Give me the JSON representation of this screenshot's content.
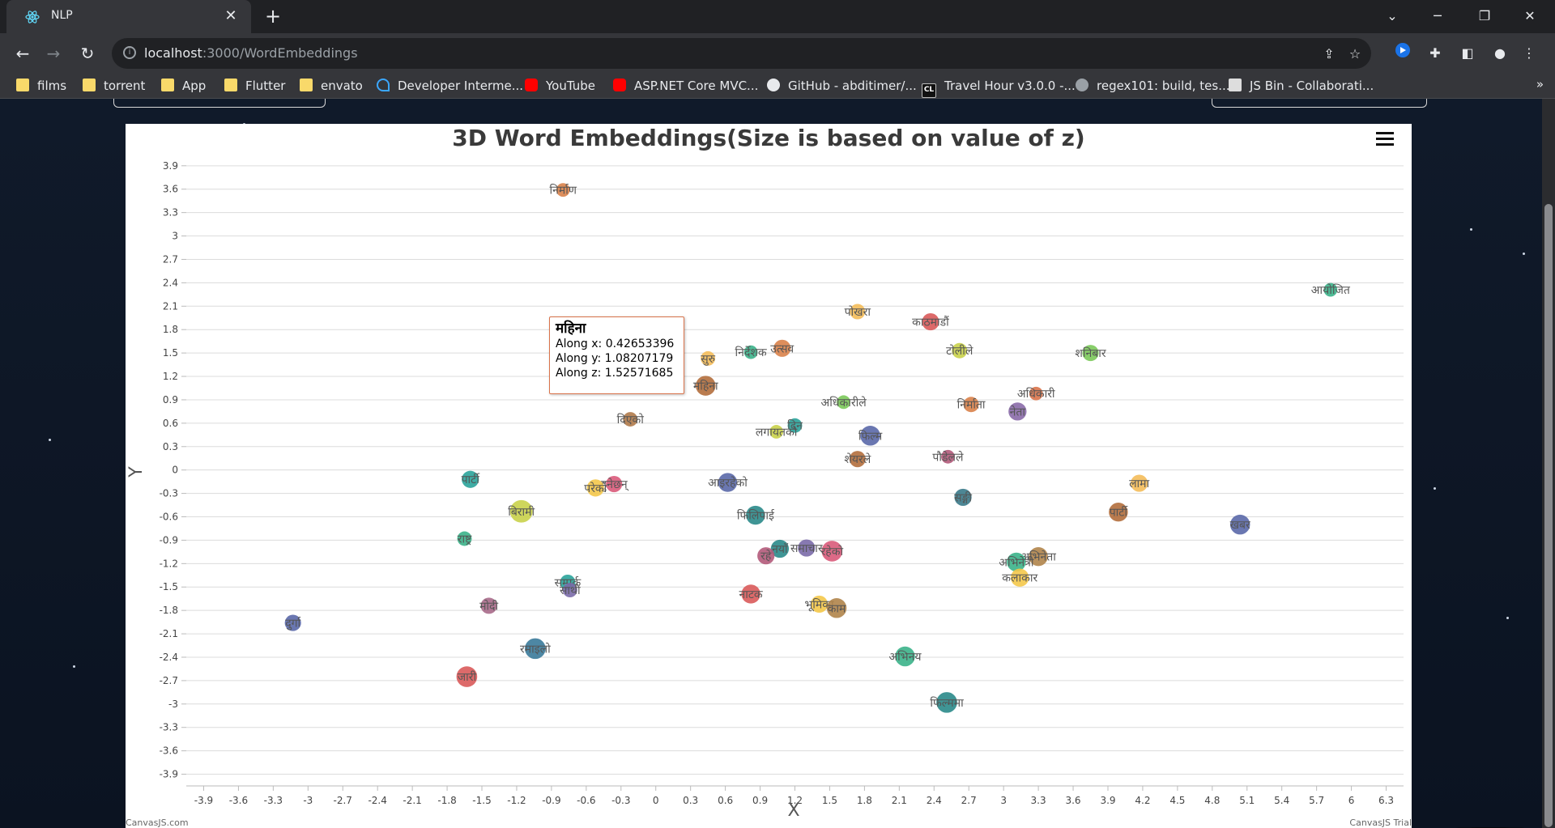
{
  "browser": {
    "tab_title": "NLP",
    "url_host": "localhost",
    "url_path": ":3000/WordEmbeddings",
    "bookmarks": [
      "films",
      "torrent",
      "App",
      "Flutter",
      "envato",
      "Developer Interme...",
      "YouTube",
      "ASP.NET Core MVC...",
      "GitHub - abditimer/...",
      "Travel Hour v3.0.0 -...",
      "regex101: build, tes...",
      "JS Bin - Collaborati..."
    ],
    "bookmark_icons": [
      "folder",
      "folder",
      "folder",
      "folder",
      "folder",
      "dev",
      "yt",
      "yt",
      "gh",
      "cl",
      "re",
      "jsbin"
    ]
  },
  "chart_data": {
    "type": "scatter",
    "title": "3D Word Embeddings(Size is based on value of z)",
    "xlabel": "X",
    "ylabel": "Y",
    "xlim": [
      -4.05,
      6.45
    ],
    "ylim": [
      -4.05,
      3.95
    ],
    "x_ticks": [
      "-3.9",
      "-3.6",
      "-3.3",
      "-3",
      "-2.7",
      "-2.4",
      "-2.1",
      "-1.8",
      "-1.5",
      "-1.2",
      "-0.9",
      "-0.6",
      "-0.3",
      "0",
      "0.3",
      "0.6",
      "0.9",
      "1.2",
      "1.5",
      "1.8",
      "2.1",
      "2.4",
      "2.7",
      "3",
      "3.3",
      "3.6",
      "3.9",
      "4.2",
      "4.5",
      "4.8",
      "5.1",
      "5.4",
      "5.7",
      "6",
      "6.3"
    ],
    "y_ticks": [
      "3.9",
      "3.6",
      "3.3",
      "3",
      "2.7",
      "2.4",
      "2.1",
      "1.8",
      "1.5",
      "1.2",
      "0.9",
      "0.6",
      "0.3",
      "0",
      "-0.3",
      "-0.6",
      "-0.9",
      "-1.2",
      "-1.5",
      "-1.8",
      "-2.1",
      "-2.4",
      "-2.7",
      "-3",
      "-3.3",
      "-3.6",
      "-3.9"
    ],
    "points": [
      {
        "label": "निर्माण",
        "x": -0.8,
        "y": 3.59,
        "z": 0.8,
        "color": "#d9824a"
      },
      {
        "label": "आयोजित",
        "x": 5.82,
        "y": 2.31,
        "z": 0.8,
        "color": "#3bb38a"
      },
      {
        "label": "पोखरा",
        "x": 1.74,
        "y": 2.03,
        "z": 1.0,
        "color": "#f4bc5a"
      },
      {
        "label": "काठमाडौं",
        "x": 2.37,
        "y": 1.9,
        "z": 1.2,
        "color": "#d95a5a"
      },
      {
        "label": "महिना",
        "x": 0.43,
        "y": 1.08,
        "z": 1.5,
        "color": "#b36e3c"
      },
      {
        "label": "सुरु",
        "x": 0.45,
        "y": 1.43,
        "z": 0.9,
        "color": "#f4bc5a"
      },
      {
        "label": "निर्देशक",
        "x": 0.82,
        "y": 1.51,
        "z": 0.8,
        "color": "#3bb38a"
      },
      {
        "label": "उत्सव",
        "x": 1.09,
        "y": 1.56,
        "z": 1.2,
        "color": "#d9824a"
      },
      {
        "label": "टोलीले",
        "x": 2.62,
        "y": 1.53,
        "z": 1.0,
        "color": "#c9d24a"
      },
      {
        "label": "शनिबार",
        "x": 3.75,
        "y": 1.5,
        "z": 1.1,
        "color": "#7bc95a"
      },
      {
        "label": "अधिकारी",
        "x": 3.28,
        "y": 0.98,
        "z": 0.8,
        "color": "#d9734a"
      },
      {
        "label": "अधिकारीले",
        "x": 1.62,
        "y": 0.87,
        "z": 0.8,
        "color": "#7bc95a"
      },
      {
        "label": "निर्माता",
        "x": 2.72,
        "y": 0.84,
        "z": 1.0,
        "color": "#d9824a"
      },
      {
        "label": "नेता",
        "x": 3.12,
        "y": 0.75,
        "z": 1.3,
        "color": "#8a6aa8"
      },
      {
        "label": "दिएको",
        "x": -0.22,
        "y": 0.65,
        "z": 0.9,
        "color": "#b07a4a"
      },
      {
        "label": "दिन",
        "x": 1.2,
        "y": 0.57,
        "z": 0.9,
        "color": "#2aa39a"
      },
      {
        "label": "लगायतको",
        "x": 1.04,
        "y": 0.49,
        "z": 0.8,
        "color": "#c9d24a"
      },
      {
        "label": "फिल्म",
        "x": 1.85,
        "y": 0.44,
        "z": 1.5,
        "color": "#5a68a8"
      },
      {
        "label": "शेयरले",
        "x": 1.74,
        "y": 0.14,
        "z": 1.1,
        "color": "#b36e3c"
      },
      {
        "label": "पौडेलले",
        "x": 2.52,
        "y": 0.17,
        "z": 0.8,
        "color": "#b35a7a"
      },
      {
        "label": "पार्टी",
        "x": -1.6,
        "y": -0.12,
        "z": 1.2,
        "color": "#2aa39a"
      },
      {
        "label": "आइरहेको",
        "x": 0.62,
        "y": -0.16,
        "z": 1.4,
        "color": "#5a68a8"
      },
      {
        "label": "हुनेछन्",
        "x": -0.36,
        "y": -0.18,
        "z": 1.1,
        "color": "#d95a7a"
      },
      {
        "label": "परेको",
        "x": -0.52,
        "y": -0.23,
        "z": 1.2,
        "color": "#f4c84a"
      },
      {
        "label": "लामा",
        "x": 4.17,
        "y": -0.17,
        "z": 1.2,
        "color": "#f4bc5a"
      },
      {
        "label": "सङ्गी",
        "x": 2.65,
        "y": -0.35,
        "z": 1.2,
        "color": "#3a7a8a"
      },
      {
        "label": "बिरामी",
        "x": -1.16,
        "y": -0.53,
        "z": 1.8,
        "color": "#c9d24a"
      },
      {
        "label": "फिलिपाई",
        "x": 0.86,
        "y": -0.58,
        "z": 1.4,
        "color": "#2a8a8a"
      },
      {
        "label": "पार्टी",
        "x": 3.99,
        "y": -0.54,
        "z": 1.4,
        "color": "#b36e3c"
      },
      {
        "label": "खबर",
        "x": 5.04,
        "y": -0.7,
        "z": 1.5,
        "color": "#5a68a8"
      },
      {
        "label": "राष्ट्र",
        "x": -1.65,
        "y": -0.88,
        "z": 0.9,
        "color": "#3bb38a"
      },
      {
        "label": "नयाँ",
        "x": 1.07,
        "y": -1.01,
        "z": 1.3,
        "color": "#2a8a8a"
      },
      {
        "label": "समाचार",
        "x": 1.3,
        "y": -1.0,
        "z": 1.2,
        "color": "#7a6aa8"
      },
      {
        "label": "रहेको",
        "x": 1.52,
        "y": -1.04,
        "z": 1.6,
        "color": "#d95a7a"
      },
      {
        "label": "रहे",
        "x": 0.95,
        "y": -1.1,
        "z": 1.2,
        "color": "#b35a7a"
      },
      {
        "label": "अभिनेता",
        "x": 3.3,
        "y": -1.11,
        "z": 1.4,
        "color": "#b0844a"
      },
      {
        "label": "अभिनेत्री",
        "x": 3.11,
        "y": -1.18,
        "z": 1.4,
        "color": "#3bb38a"
      },
      {
        "label": "कलाकार",
        "x": 3.14,
        "y": -1.38,
        "z": 1.3,
        "color": "#f4c84a"
      },
      {
        "label": "सम्पर्क",
        "x": -0.76,
        "y": -1.44,
        "z": 1.0,
        "color": "#2aa39a"
      },
      {
        "label": "साथी",
        "x": -0.74,
        "y": -1.54,
        "z": 0.9,
        "color": "#7a6aa8"
      },
      {
        "label": "नाटक",
        "x": 0.82,
        "y": -1.59,
        "z": 1.4,
        "color": "#d95a5a"
      },
      {
        "label": "भूमिका",
        "x": 1.41,
        "y": -1.72,
        "z": 1.2,
        "color": "#f4c84a"
      },
      {
        "label": "काम",
        "x": 1.56,
        "y": -1.77,
        "z": 1.5,
        "color": "#b0844a"
      },
      {
        "label": "मोदी",
        "x": -1.44,
        "y": -1.74,
        "z": 1.1,
        "color": "#a86a8a"
      },
      {
        "label": "दुर्गा",
        "x": -3.13,
        "y": -1.96,
        "z": 1.1,
        "color": "#5a68a8"
      },
      {
        "label": "रमाइलो",
        "x": -1.04,
        "y": -2.29,
        "z": 1.6,
        "color": "#3a7a9a"
      },
      {
        "label": "अभिनय",
        "x": 2.15,
        "y": -2.39,
        "z": 1.5,
        "color": "#3bb38a"
      },
      {
        "label": "जारी",
        "x": -1.63,
        "y": -2.65,
        "z": 1.6,
        "color": "#d95a5a"
      },
      {
        "label": "फिल्ममा",
        "x": 2.51,
        "y": -2.98,
        "z": 1.6,
        "color": "#2a8a8a"
      }
    ],
    "tooltip": {
      "title": "महिना",
      "line_x": "Along x: 0.42653396",
      "line_y": "Along y: 1.08207179",
      "line_z": "Along z: 1.52571685"
    },
    "credit_left": "CanvasJS.com",
    "credit_right": "CanvasJS Trial"
  }
}
